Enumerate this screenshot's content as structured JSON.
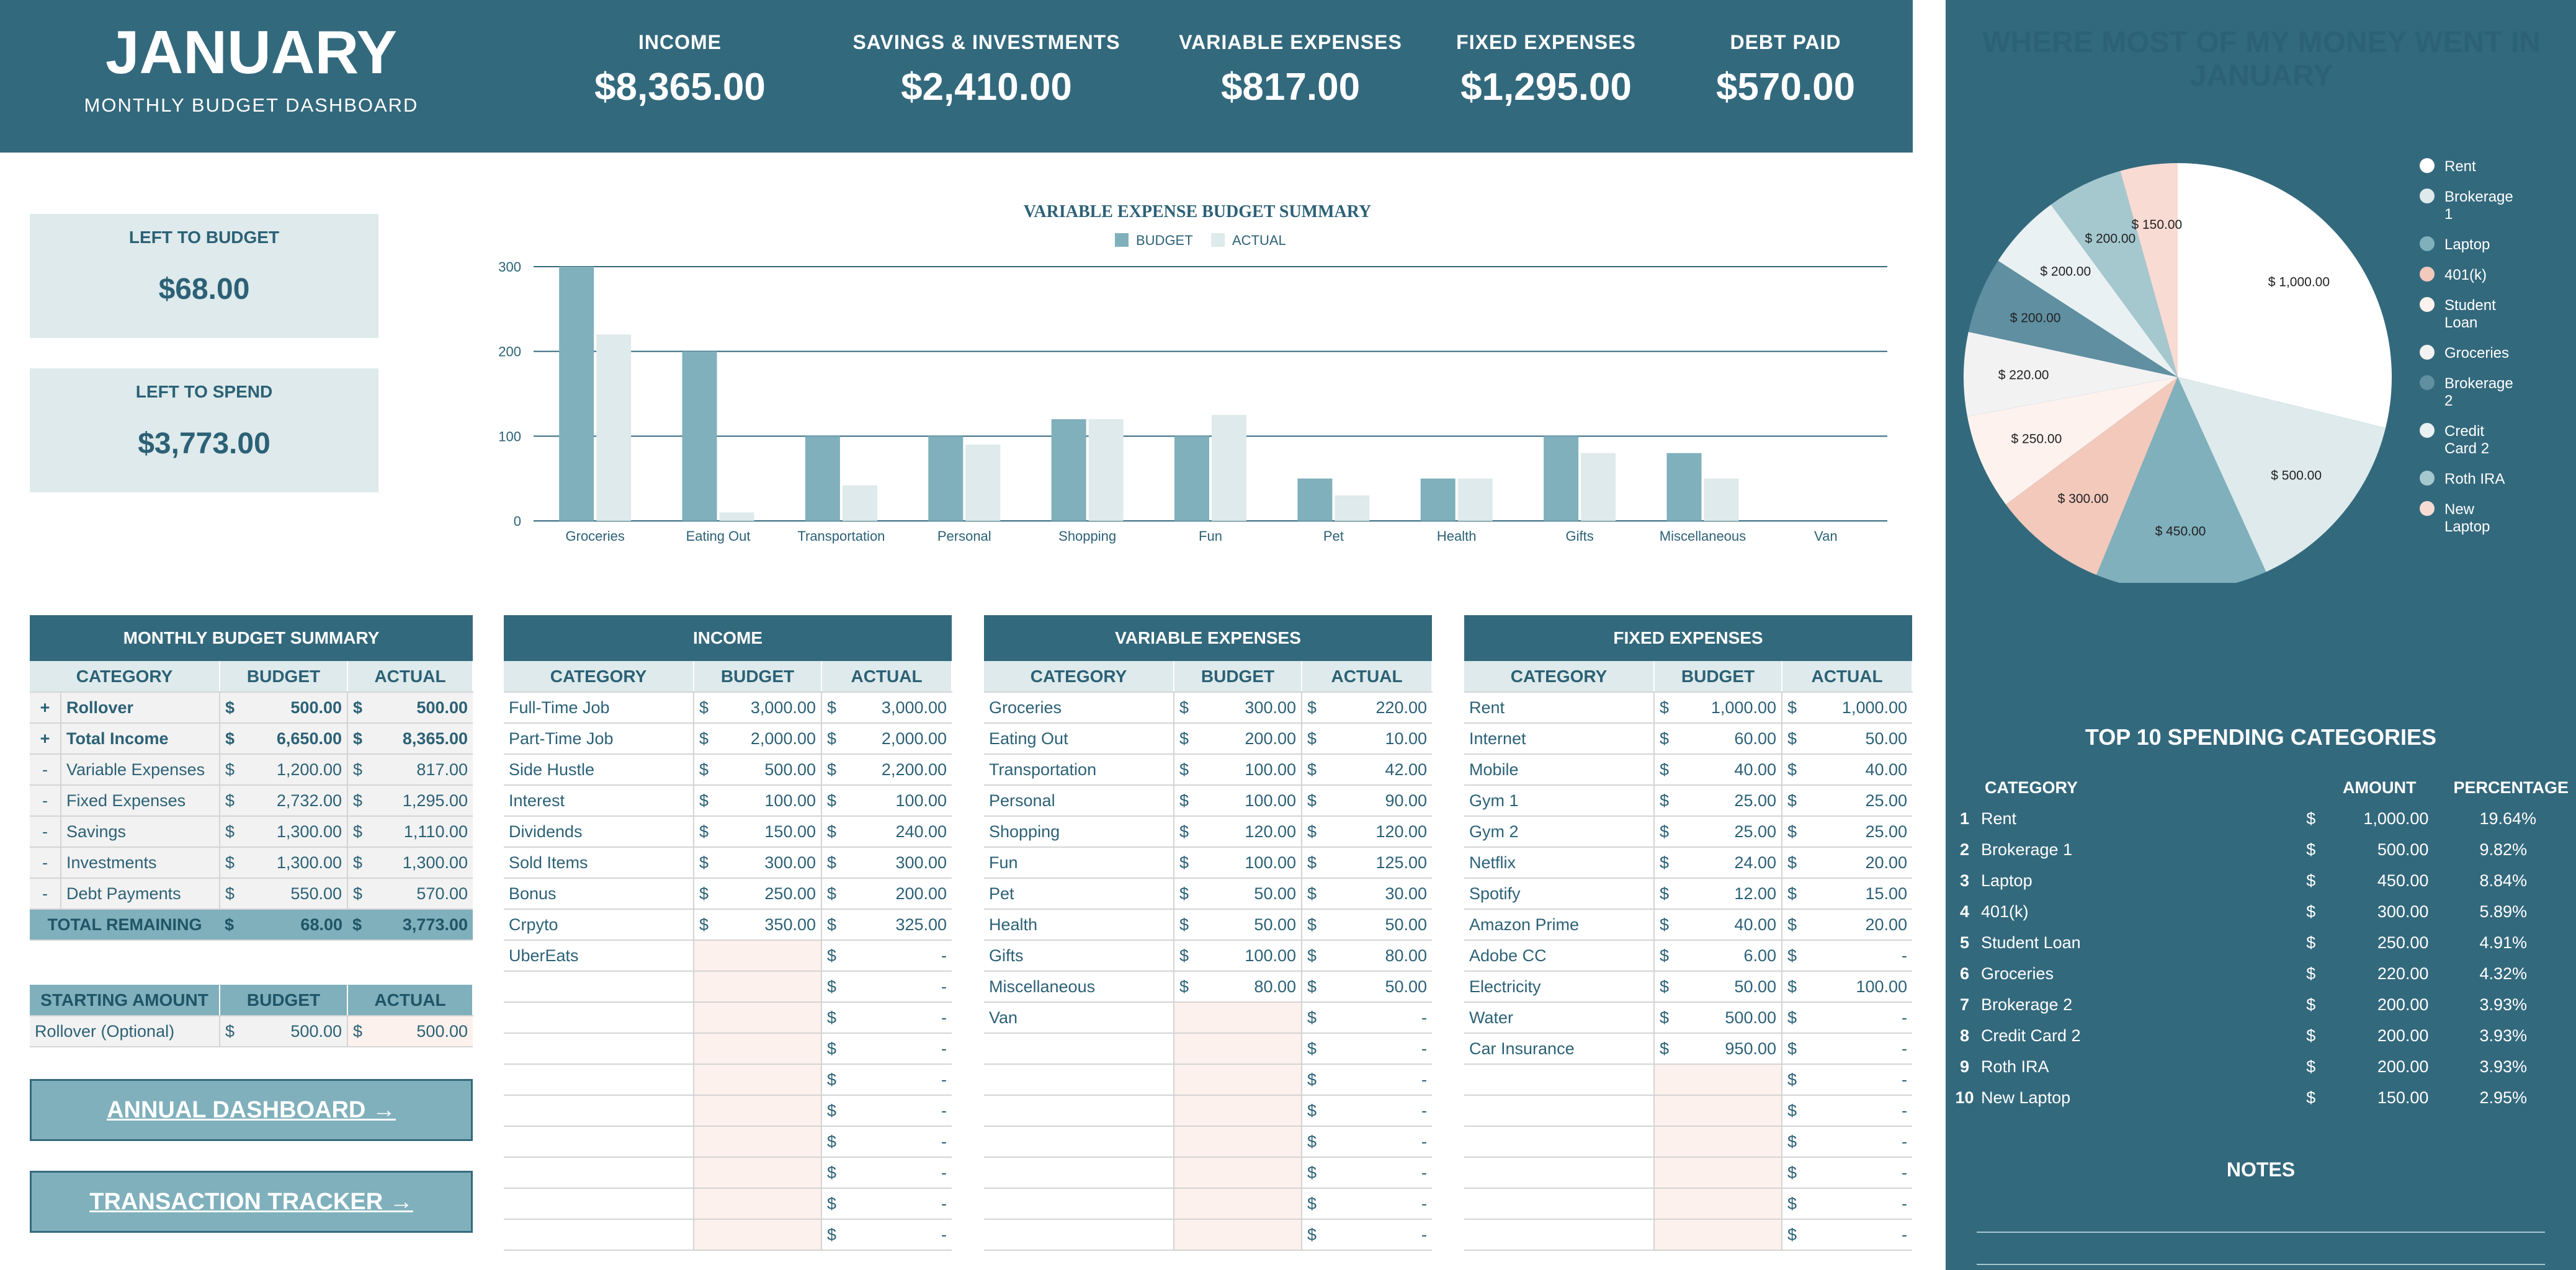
{
  "header": {
    "month": "JANUARY",
    "subtitle": "MONTHLY  BUDGET  DASHBOARD",
    "kpis": [
      {
        "label": "INCOME",
        "value": "$8,365.00"
      },
      {
        "label": "SAVINGS & INVESTMENTS",
        "value": "$2,410.00"
      },
      {
        "label": "VARIABLE EXPENSES",
        "value": "$817.00"
      },
      {
        "label": "FIXED EXPENSES",
        "value": "$1,295.00"
      },
      {
        "label": "DEBT PAID",
        "value": "$570.00"
      }
    ]
  },
  "left_to_budget": {
    "label": "LEFT TO BUDGET",
    "value": "$68.00"
  },
  "left_to_spend": {
    "label": "LEFT TO SPEND",
    "value": "$3,773.00"
  },
  "chart_data": {
    "type": "bar",
    "title": "VARIABLE EXPENSE BUDGET SUMMARY",
    "categories": [
      "Groceries",
      "Eating Out",
      "Transportation",
      "Personal",
      "Shopping",
      "Fun",
      "Pet",
      "Health",
      "Gifts",
      "Miscellaneous",
      "Van"
    ],
    "series": [
      {
        "name": "BUDGET",
        "values": [
          300,
          200,
          100,
          100,
          120,
          100,
          50,
          50,
          100,
          80,
          0
        ],
        "color": "#7fb0bc"
      },
      {
        "name": "ACTUAL",
        "values": [
          220,
          10,
          42,
          90,
          120,
          125,
          30,
          50,
          80,
          50,
          0
        ],
        "color": "#deeaeb"
      }
    ],
    "yticks": [
      "0",
      "100",
      "200",
      "300"
    ],
    "ylim": [
      0,
      300
    ],
    "legend": "top-center"
  },
  "pie_chart": {
    "title": "WHERE MOST OF MY MONEY WENT IN JANUARY",
    "slices": [
      {
        "name": "Rent",
        "value": 1000,
        "label": "$ 1,000.00",
        "color": "#ffffff"
      },
      {
        "name": "Brokerage 1",
        "value": 500,
        "label": "$ 500.00",
        "color": "#deeaeb"
      },
      {
        "name": "Laptop",
        "value": 450,
        "label": "$ 450.00",
        "color": "#7fb0bc"
      },
      {
        "name": "401(k)",
        "value": 300,
        "label": "$ 300.00",
        "color": "#f2c9bb"
      },
      {
        "name": "Student Loan",
        "value": 250,
        "label": "$ 250.00",
        "color": "#fdf2ee"
      },
      {
        "name": "Groceries",
        "value": 220,
        "label": "$ 220.00",
        "color": "#f2f2f2"
      },
      {
        "name": "Brokerage 2",
        "value": 200,
        "label": "$ 200.00",
        "color": "#5f8fa1"
      },
      {
        "name": "Credit Card 2",
        "value": 200,
        "label": "$ 200.00",
        "color": "#e9f1f2"
      },
      {
        "name": "Roth IRA",
        "value": 200,
        "label": "$ 200.00",
        "color": "#a5c8cf"
      },
      {
        "name": "New Laptop",
        "value": 150,
        "label": "$ 150.00",
        "color": "#f8dbd3"
      }
    ]
  },
  "monthly_summary": {
    "title": "MONTHLY BUDGET SUMMARY",
    "cols": [
      "CATEGORY",
      "BUDGET",
      "ACTUAL"
    ],
    "rows": [
      {
        "sign": "+",
        "cat": "Rollover",
        "budget": "500.00",
        "actual": "500.00",
        "bold": true
      },
      {
        "sign": "+",
        "cat": "Total Income",
        "budget": "6,650.00",
        "actual": "8,365.00",
        "bold": true
      },
      {
        "sign": "-",
        "cat": "Variable Expenses",
        "budget": "1,200.00",
        "actual": "817.00"
      },
      {
        "sign": "-",
        "cat": "Fixed Expenses",
        "budget": "2,732.00",
        "actual": "1,295.00"
      },
      {
        "sign": "-",
        "cat": "Savings",
        "budget": "1,300.00",
        "actual": "1,110.00"
      },
      {
        "sign": "-",
        "cat": "Investments",
        "budget": "1,300.00",
        "actual": "1,300.00"
      },
      {
        "sign": "-",
        "cat": "Debt Payments",
        "budget": "550.00",
        "actual": "570.00"
      }
    ],
    "total": {
      "cat": "TOTAL REMAINING",
      "budget": "68.00",
      "actual": "3,773.00"
    },
    "start_cols": [
      "STARTING AMOUNT",
      "BUDGET",
      "ACTUAL"
    ],
    "start_row": {
      "cat": "Rollover (Optional)",
      "budget": "500.00",
      "actual": "500.00"
    }
  },
  "income": {
    "title": "INCOME",
    "cols": [
      "CATEGORY",
      "BUDGET",
      "ACTUAL"
    ],
    "rows": [
      {
        "cat": "Full-Time Job",
        "budget": "3,000.00",
        "actual": "3,000.00"
      },
      {
        "cat": "Part-Time Job",
        "budget": "2,000.00",
        "actual": "2,000.00"
      },
      {
        "cat": "Side Hustle",
        "budget": "500.00",
        "actual": "2,200.00"
      },
      {
        "cat": "Interest",
        "budget": "100.00",
        "actual": "100.00"
      },
      {
        "cat": "Dividends",
        "budget": "150.00",
        "actual": "240.00"
      },
      {
        "cat": "Sold Items",
        "budget": "300.00",
        "actual": "300.00"
      },
      {
        "cat": "Bonus",
        "budget": "250.00",
        "actual": "200.00"
      },
      {
        "cat": "Crpyto",
        "budget": "350.00",
        "actual": "325.00"
      },
      {
        "cat": "UberEats",
        "budget": "",
        "actual": "-"
      }
    ]
  },
  "variable": {
    "title": "VARIABLE EXPENSES",
    "cols": [
      "CATEGORY",
      "BUDGET",
      "ACTUAL"
    ],
    "rows": [
      {
        "cat": "Groceries",
        "budget": "300.00",
        "actual": "220.00"
      },
      {
        "cat": "Eating Out",
        "budget": "200.00",
        "actual": "10.00"
      },
      {
        "cat": "Transportation",
        "budget": "100.00",
        "actual": "42.00"
      },
      {
        "cat": "Personal",
        "budget": "100.00",
        "actual": "90.00"
      },
      {
        "cat": "Shopping",
        "budget": "120.00",
        "actual": "120.00"
      },
      {
        "cat": "Fun",
        "budget": "100.00",
        "actual": "125.00"
      },
      {
        "cat": "Pet",
        "budget": "50.00",
        "actual": "30.00"
      },
      {
        "cat": "Health",
        "budget": "50.00",
        "actual": "50.00"
      },
      {
        "cat": "Gifts",
        "budget": "100.00",
        "actual": "80.00"
      },
      {
        "cat": "Miscellaneous",
        "budget": "80.00",
        "actual": "50.00"
      },
      {
        "cat": "Van",
        "budget": "",
        "actual": "-"
      }
    ]
  },
  "fixed": {
    "title": "FIXED EXPENSES",
    "cols": [
      "CATEGORY",
      "BUDGET",
      "ACTUAL"
    ],
    "rows": [
      {
        "cat": "Rent",
        "budget": "1,000.00",
        "actual": "1,000.00"
      },
      {
        "cat": "Internet",
        "budget": "60.00",
        "actual": "50.00"
      },
      {
        "cat": "Mobile",
        "budget": "40.00",
        "actual": "40.00"
      },
      {
        "cat": "Gym 1",
        "budget": "25.00",
        "actual": "25.00"
      },
      {
        "cat": "Gym 2",
        "budget": "25.00",
        "actual": "25.00"
      },
      {
        "cat": "Netflix",
        "budget": "24.00",
        "actual": "20.00"
      },
      {
        "cat": "Spotify",
        "budget": "12.00",
        "actual": "15.00"
      },
      {
        "cat": "Amazon Prime",
        "budget": "40.00",
        "actual": "20.00"
      },
      {
        "cat": "Adobe CC",
        "budget": "6.00",
        "actual": "-"
      },
      {
        "cat": "Electricity",
        "budget": "50.00",
        "actual": "100.00"
      },
      {
        "cat": "Water",
        "budget": "500.00",
        "actual": "-"
      },
      {
        "cat": "Car Insurance",
        "budget": "950.00",
        "actual": "-"
      }
    ]
  },
  "empty_actual": "-",
  "currency": "$",
  "buttons": {
    "annual": "ANNUAL DASHBOARD →",
    "tracker": "TRANSACTION TRACKER →"
  },
  "top10": {
    "title": "TOP 10 SPENDING CATEGORIES",
    "cols": [
      "CATEGORY",
      "AMOUNT",
      "PERCENTAGE"
    ],
    "rows": [
      {
        "n": "1",
        "cat": "Rent",
        "amt": "1,000.00",
        "pct": "19.64%"
      },
      {
        "n": "2",
        "cat": "Brokerage 1",
        "amt": "500.00",
        "pct": "9.82%"
      },
      {
        "n": "3",
        "cat": "Laptop",
        "amt": "450.00",
        "pct": "8.84%"
      },
      {
        "n": "4",
        "cat": "401(k)",
        "amt": "300.00",
        "pct": "5.89%"
      },
      {
        "n": "5",
        "cat": "Student Loan",
        "amt": "250.00",
        "pct": "4.91%"
      },
      {
        "n": "6",
        "cat": "Groceries",
        "amt": "220.00",
        "pct": "4.32%"
      },
      {
        "n": "7",
        "cat": "Brokerage 2",
        "amt": "200.00",
        "pct": "3.93%"
      },
      {
        "n": "8",
        "cat": "Credit Card 2",
        "amt": "200.00",
        "pct": "3.93%"
      },
      {
        "n": "9",
        "cat": "Roth IRA",
        "amt": "200.00",
        "pct": "3.93%"
      },
      {
        "n": "10",
        "cat": "New Laptop",
        "amt": "150.00",
        "pct": "2.95%"
      }
    ]
  },
  "notes": {
    "title": "NOTES"
  }
}
